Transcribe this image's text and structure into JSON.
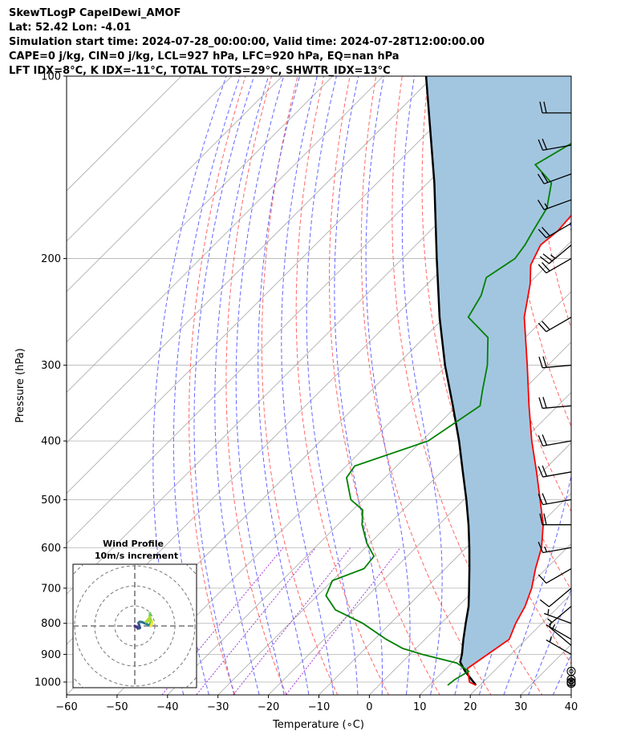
{
  "header": {
    "line1": "SkewTLogP CapelDewi_AMOF",
    "line2": "Lat: 52.42   Lon: -4.01",
    "line3": "Simulation start time: 2024-07-28_00:00:00, Valid time: 2024-07-28T12:00:00.00",
    "line4": "CAPE=0 j/kg, CIN=0 j/kg, LCL=927 hPa, LFC=920 hPa, EQ=nan hPa",
    "line5": "LFT IDX=8°C, K IDX=-11°C, TOTAL TOTS=29°C, SHWTR_IDX=13°C"
  },
  "colors": {
    "temperature": "#ff0000",
    "dewpoint": "#008000",
    "parcel": "#000000",
    "cape_fill": "#a3c6e0",
    "dry_adiabat": "#ff6666",
    "moist_adiabat": "#6666ff",
    "mixing_ratio": "#aa33dd",
    "grid": "#b0b0b0",
    "isotherm": "#a8a8a8"
  },
  "chart_data": [
    {
      "type": "line",
      "subtype": "skew-T log-P",
      "xlabel": "Temperature (∘C)",
      "ylabel": "Pressure (hPa)",
      "xlim": [
        -60,
        40
      ],
      "ylim": [
        1050,
        100
      ],
      "yscale": "log",
      "skew": 45,
      "x_ticks": [
        -60,
        -50,
        -40,
        -30,
        -20,
        -10,
        0,
        10,
        20,
        30,
        40
      ],
      "x_tick_labels": [
        "−60",
        "−50",
        "−40",
        "−30",
        "−20",
        "−10",
        "0",
        "10",
        "20",
        "30",
        "40"
      ],
      "y_ticks": [
        1000,
        900,
        800,
        700,
        600,
        500,
        400,
        300,
        200,
        100
      ],
      "grid": true,
      "series": [
        {
          "role": "temperature",
          "pressure": [
            1012,
            1000,
            950,
            900,
            850,
            800,
            750,
            700,
            650,
            600,
            550,
            500,
            450,
            400,
            350,
            300,
            250,
            220,
            205,
            190,
            180,
            160,
            145,
            130,
            120,
            110,
            100
          ],
          "values": [
            19.2,
            17.3,
            14.2,
            15.4,
            16.7,
            14.8,
            13.3,
            11.0,
            7.9,
            4.9,
            0.7,
            -4.9,
            -11.1,
            -18.2,
            -25.7,
            -34.1,
            -44.2,
            -49.7,
            -53.3,
            -55.3,
            -54.7,
            -55.5,
            -56.2,
            -56.3,
            -56.8,
            -57.5,
            -58.8
          ]
        },
        {
          "role": "dewpoint",
          "pressure": [
            1012,
            990,
            960,
            930,
            900,
            880,
            850,
            800,
            760,
            720,
            680,
            650,
            620,
            590,
            550,
            520,
            500,
            460,
            440,
            400,
            350,
            330,
            300,
            270,
            250,
            230,
            215,
            200,
            190,
            180,
            165,
            150,
            140,
            125,
            110,
            100
          ],
          "values": [
            13.6,
            13.9,
            15.0,
            11.0,
            2.4,
            -2.6,
            -7.7,
            -15.5,
            -23.6,
            -28.3,
            -30.0,
            -26.1,
            -26.6,
            -30.6,
            -35.2,
            -38.0,
            -42.4,
            -47.6,
            -48.3,
            -38.7,
            -35.4,
            -38.0,
            -42.0,
            -47.4,
            -55.3,
            -57.1,
            -59.6,
            -57.7,
            -58.4,
            -59.6,
            -61.4,
            -65.5,
            -72.3,
            -68.2,
            -66.0,
            -65.3
          ]
        },
        {
          "role": "parcel",
          "pressure": [
            1012,
            960,
            927,
            900,
            850,
            800,
            750,
            700,
            650,
            600,
            550,
            500,
            450,
            400,
            350,
            300,
            250,
            200,
            150,
            100
          ],
          "values": [
            19.2,
            14.3,
            11.5,
            10.3,
            7.6,
            4.9,
            2.1,
            -1.4,
            -5.2,
            -9.4,
            -14.1,
            -19.5,
            -25.7,
            -32.6,
            -40.8,
            -50.4,
            -61.0,
            -73.2,
            -88.7,
            -111.5
          ]
        }
      ],
      "wind_barbs": {
        "pressure": [
          1005,
          1000,
          990,
          960,
          900,
          870,
          850,
          800,
          750,
          700,
          650,
          600,
          550,
          500,
          450,
          400,
          350,
          300,
          250,
          200,
          190,
          175,
          160,
          145,
          130,
          115
        ],
        "speed_kt": [
          0,
          0,
          0,
          2,
          6,
          5,
          6,
          7,
          6,
          8,
          10,
          15,
          20,
          20,
          21,
          21,
          21,
          21,
          22,
          22,
          25,
          22,
          15,
          22,
          22,
          20
        ],
        "direction_deg": [
          0,
          0,
          0,
          300,
          300,
          310,
          300,
          290,
          230,
          230,
          240,
          260,
          270,
          260,
          260,
          260,
          265,
          265,
          240,
          240,
          230,
          240,
          250,
          250,
          260,
          270
        ]
      }
    },
    {
      "type": "line",
      "subtype": "hodograph",
      "title": "Wind Profile",
      "subtitle": "10m/s increment",
      "rings": [
        10,
        20,
        30,
        40,
        50
      ]
    }
  ]
}
